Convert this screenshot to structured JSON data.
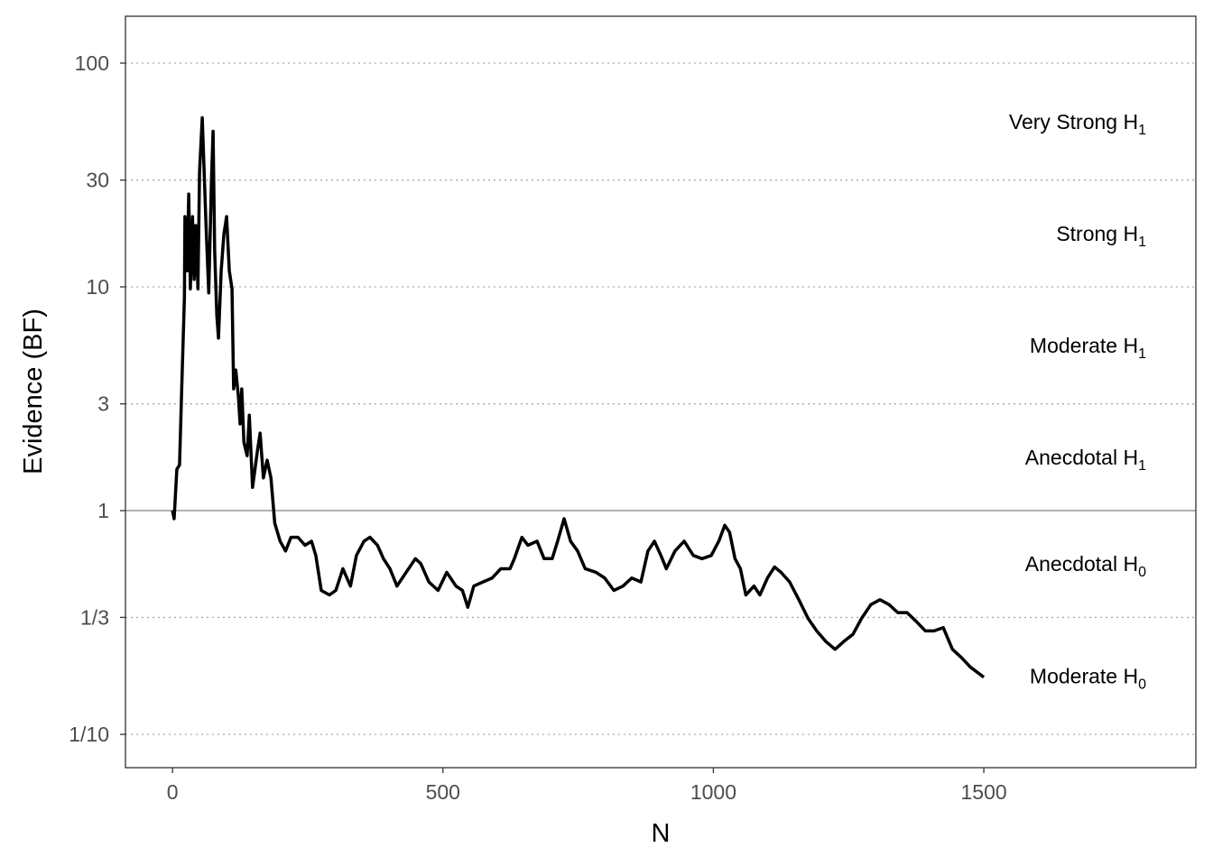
{
  "chart_data": {
    "type": "line",
    "xlabel": "N",
    "ylabel": "Evidence (BF)",
    "log_y": true,
    "grid": true,
    "refline": 1,
    "xlim": [
      -87,
      1892
    ],
    "ylim": [
      0.071,
      162
    ],
    "xticks": [
      0,
      500,
      1000,
      1500
    ],
    "yticks": [
      {
        "value": 0.1,
        "label": "1/10"
      },
      {
        "value": 0.3333,
        "label": "1/3"
      },
      1,
      3,
      10,
      30,
      100
    ],
    "bands": [
      {
        "label": "Moderate H",
        "sub": "0"
      },
      {
        "label": "Anecdotal H",
        "sub": "0"
      },
      {
        "label": "Anecdotal H",
        "sub": "1"
      },
      {
        "label": "Moderate H",
        "sub": "1"
      },
      {
        "label": "Strong H",
        "sub": "1"
      },
      {
        "label": "Very Strong H",
        "sub": "1"
      }
    ],
    "x": [
      0,
      3,
      8,
      13,
      17,
      22,
      23,
      27,
      30,
      33,
      37,
      40,
      43,
      47,
      50,
      55,
      62,
      67,
      72,
      75,
      78,
      82,
      85,
      90,
      95,
      100,
      105,
      110,
      113,
      117,
      122,
      125,
      128,
      132,
      138,
      142,
      148,
      157,
      162,
      168,
      175,
      182,
      189,
      199,
      209,
      219,
      232,
      245,
      257,
      265,
      275,
      290,
      302,
      315,
      329,
      340,
      354,
      365,
      379,
      390,
      402,
      415,
      432,
      449,
      459,
      474,
      491,
      507,
      524,
      536,
      546,
      557,
      574,
      591,
      607,
      624,
      632,
      646,
      657,
      674,
      687,
      702,
      712,
      724,
      736,
      749,
      763,
      783,
      799,
      816,
      833,
      849,
      866,
      879,
      891,
      903,
      913,
      929,
      946,
      963,
      979,
      996,
      1010,
      1021,
      1030,
      1040,
      1050,
      1060,
      1075,
      1086,
      1100,
      1113,
      1125,
      1141,
      1158,
      1175,
      1191,
      1208,
      1225,
      1241,
      1258,
      1274,
      1291,
      1308,
      1325,
      1341,
      1358,
      1375,
      1392,
      1408,
      1425,
      1442,
      1459,
      1475,
      1500
    ],
    "series": [
      {
        "color": "#000000",
        "values": [
          1.0,
          0.92,
          1.53,
          1.6,
          3.5,
          8.95,
          20.6,
          11.8,
          26,
          9.8,
          20.6,
          10.8,
          18.8,
          9.8,
          32.8,
          57,
          18.8,
          9.4,
          29.9,
          49.6,
          14.3,
          7.4,
          5.9,
          11.8,
          17.2,
          20.6,
          11.8,
          9.8,
          3.5,
          4.25,
          3.2,
          2.44,
          3.5,
          2.02,
          1.76,
          2.67,
          1.27,
          1.85,
          2.22,
          1.4,
          1.68,
          1.4,
          0.88,
          0.73,
          0.66,
          0.76,
          0.76,
          0.7,
          0.73,
          0.63,
          0.44,
          0.42,
          0.44,
          0.55,
          0.46,
          0.63,
          0.73,
          0.76,
          0.7,
          0.61,
          0.55,
          0.46,
          0.53,
          0.61,
          0.58,
          0.48,
          0.44,
          0.53,
          0.46,
          0.44,
          0.37,
          0.46,
          0.48,
          0.5,
          0.55,
          0.55,
          0.61,
          0.76,
          0.7,
          0.73,
          0.61,
          0.61,
          0.73,
          0.92,
          0.73,
          0.66,
          0.55,
          0.53,
          0.5,
          0.44,
          0.46,
          0.5,
          0.48,
          0.66,
          0.73,
          0.63,
          0.55,
          0.66,
          0.73,
          0.63,
          0.61,
          0.63,
          0.73,
          0.86,
          0.8,
          0.61,
          0.55,
          0.42,
          0.46,
          0.42,
          0.5,
          0.56,
          0.53,
          0.48,
          0.4,
          0.33,
          0.29,
          0.26,
          0.24,
          0.26,
          0.28,
          0.33,
          0.38,
          0.4,
          0.38,
          0.35,
          0.35,
          0.32,
          0.29,
          0.29,
          0.3,
          0.24,
          0.22,
          0.2,
          0.18
        ]
      }
    ]
  }
}
